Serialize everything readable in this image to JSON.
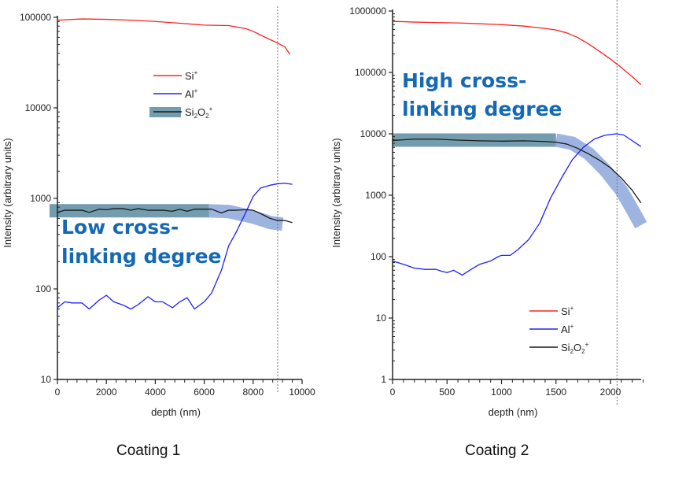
{
  "chart_data": [
    {
      "type": "line",
      "caption": "Coating 1",
      "xlabel": "depth (nm)",
      "ylabel": "Intensity (arbitrary units)",
      "yscale": "log",
      "xlim": [
        0,
        10000
      ],
      "ylim": [
        10,
        100000
      ],
      "xticks": [
        "0",
        "2000",
        "4000",
        "6000",
        "8000",
        "10000"
      ],
      "xtick_values": [
        0,
        2000,
        4000,
        6000,
        8000,
        10000
      ],
      "yticks": [
        "10",
        "100",
        "1000",
        "10000",
        "100000"
      ],
      "ytick_values": [
        10,
        100,
        1000,
        10000,
        100000
      ],
      "vline": 9000,
      "legend": {
        "placement": "upper-center",
        "entries": [
          {
            "label": "Si",
            "sup": "+",
            "sub": "",
            "color": "#ff2020"
          },
          {
            "label": "Al",
            "sup": "+",
            "sub": "",
            "color": "#2020ff"
          },
          {
            "label": "Si",
            "sub": "2",
            "mid": "O",
            "sub2": "2",
            "sup": "+",
            "color": "#1a1a1a",
            "highlight": true
          }
        ]
      },
      "annotation": [
        "Low cross-",
        "linking degree"
      ],
      "band": {
        "flat_end": 6200,
        "color_flat": "#5b8ca0",
        "color_curve": "#7d9bd6"
      },
      "series": [
        {
          "name": "Si+",
          "color": "#ff2020",
          "x": [
            0,
            1000,
            2000,
            3000,
            4000,
            5000,
            6000,
            7000,
            7700,
            8000,
            8500,
            9000,
            9300,
            9500
          ],
          "y": [
            93000,
            96000,
            95000,
            93000,
            90000,
            86000,
            82000,
            81000,
            75000,
            70000,
            60000,
            52000,
            47000,
            39000
          ]
        },
        {
          "name": "Al+",
          "color": "#2020ff",
          "x": [
            0,
            300,
            600,
            1000,
            1300,
            1700,
            2000,
            2300,
            2700,
            3000,
            3300,
            3700,
            4000,
            4300,
            4700,
            5000,
            5300,
            5600,
            6000,
            6300,
            6700,
            7000,
            7300,
            7700,
            8000,
            8300,
            8700,
            9000,
            9300,
            9600
          ],
          "y": [
            62,
            72,
            70,
            70,
            60,
            75,
            85,
            72,
            66,
            60,
            67,
            82,
            72,
            72,
            62,
            72,
            80,
            60,
            72,
            90,
            160,
            300,
            420,
            700,
            1050,
            1300,
            1400,
            1450,
            1470,
            1430
          ]
        },
        {
          "name": "Si2O2+",
          "color": "#1a1a1a",
          "x": [
            0,
            300,
            600,
            1000,
            1300,
            1700,
            2000,
            2300,
            2700,
            3000,
            3300,
            3700,
            4000,
            4300,
            4700,
            5000,
            5300,
            5600,
            6000,
            6300,
            6700,
            7000,
            7300,
            7700,
            8000,
            8300,
            8700,
            9000,
            9300,
            9600
          ],
          "y": [
            700,
            740,
            740,
            740,
            700,
            760,
            750,
            770,
            770,
            740,
            770,
            740,
            740,
            740,
            720,
            760,
            720,
            760,
            760,
            760,
            690,
            740,
            740,
            750,
            740,
            680,
            600,
            570,
            570,
            540
          ]
        }
      ]
    },
    {
      "type": "line",
      "caption": "Coating 2",
      "xlabel": "depth (nm)",
      "ylabel": "Intensity (arbitrary units)",
      "yscale": "log",
      "xlim": [
        0,
        2300
      ],
      "ylim": [
        1,
        1000000
      ],
      "xticks": [
        "0",
        "500",
        "1000",
        "1500",
        "2000"
      ],
      "xtick_values": [
        0,
        500,
        1000,
        1500,
        2000
      ],
      "yticks": [
        "1",
        "10",
        "100",
        "1000",
        "10000",
        "100000",
        "1000000"
      ],
      "ytick_values": [
        1,
        10,
        100,
        1000,
        10000,
        100000,
        1000000
      ],
      "vline": 2060,
      "legend": {
        "placement": "lower-right",
        "entries": [
          {
            "label": "Si",
            "sup": "+",
            "sub": "",
            "color": "#ff2020"
          },
          {
            "label": "Al",
            "sup": "+",
            "sub": "",
            "color": "#2020ff"
          },
          {
            "label": "Si",
            "sub": "2",
            "mid": "O",
            "sub2": "2",
            "sup": "+",
            "color": "#1a1a1a",
            "highlight": false
          }
        ]
      },
      "annotation": [
        "High cross-",
        "linking degree"
      ],
      "band": {
        "flat_end": 1500,
        "color_flat": "#5b8ca0",
        "color_curve": "#7d9bd6"
      },
      "series": [
        {
          "name": "Si+",
          "color": "#ff2020",
          "x": [
            0,
            200,
            400,
            600,
            800,
            1000,
            1200,
            1400,
            1500,
            1600,
            1700,
            1800,
            1900,
            2000,
            2100,
            2200,
            2280
          ],
          "y": [
            680000,
            660000,
            650000,
            640000,
            620000,
            600000,
            570000,
            520000,
            490000,
            440000,
            370000,
            290000,
            220000,
            165000,
            120000,
            85000,
            63000
          ]
        },
        {
          "name": "Al+",
          "color": "#2020ff",
          "x": [
            0,
            100,
            200,
            300,
            400,
            450,
            500,
            560,
            640,
            720,
            800,
            900,
            970,
            1000,
            1080,
            1150,
            1250,
            1350,
            1450,
            1550,
            1650,
            1750,
            1850,
            1950,
            2050,
            2120,
            2280
          ],
          "y": [
            85,
            75,
            65,
            62,
            62,
            58,
            55,
            60,
            50,
            62,
            75,
            85,
            100,
            105,
            105,
            130,
            190,
            350,
            900,
            1900,
            3800,
            6000,
            8200,
            9500,
            10000,
            9600,
            6200
          ]
        },
        {
          "name": "Si2O2+",
          "color": "#1a1a1a",
          "x": [
            0,
            200,
            400,
            600,
            800,
            1000,
            1200,
            1400,
            1500,
            1600,
            1700,
            1800,
            1900,
            2000,
            2100,
            2200,
            2280
          ],
          "y": [
            7800,
            8200,
            8200,
            7900,
            7700,
            7600,
            7700,
            7500,
            7300,
            6800,
            5800,
            4700,
            3700,
            2800,
            1900,
            1200,
            750
          ]
        }
      ]
    }
  ]
}
